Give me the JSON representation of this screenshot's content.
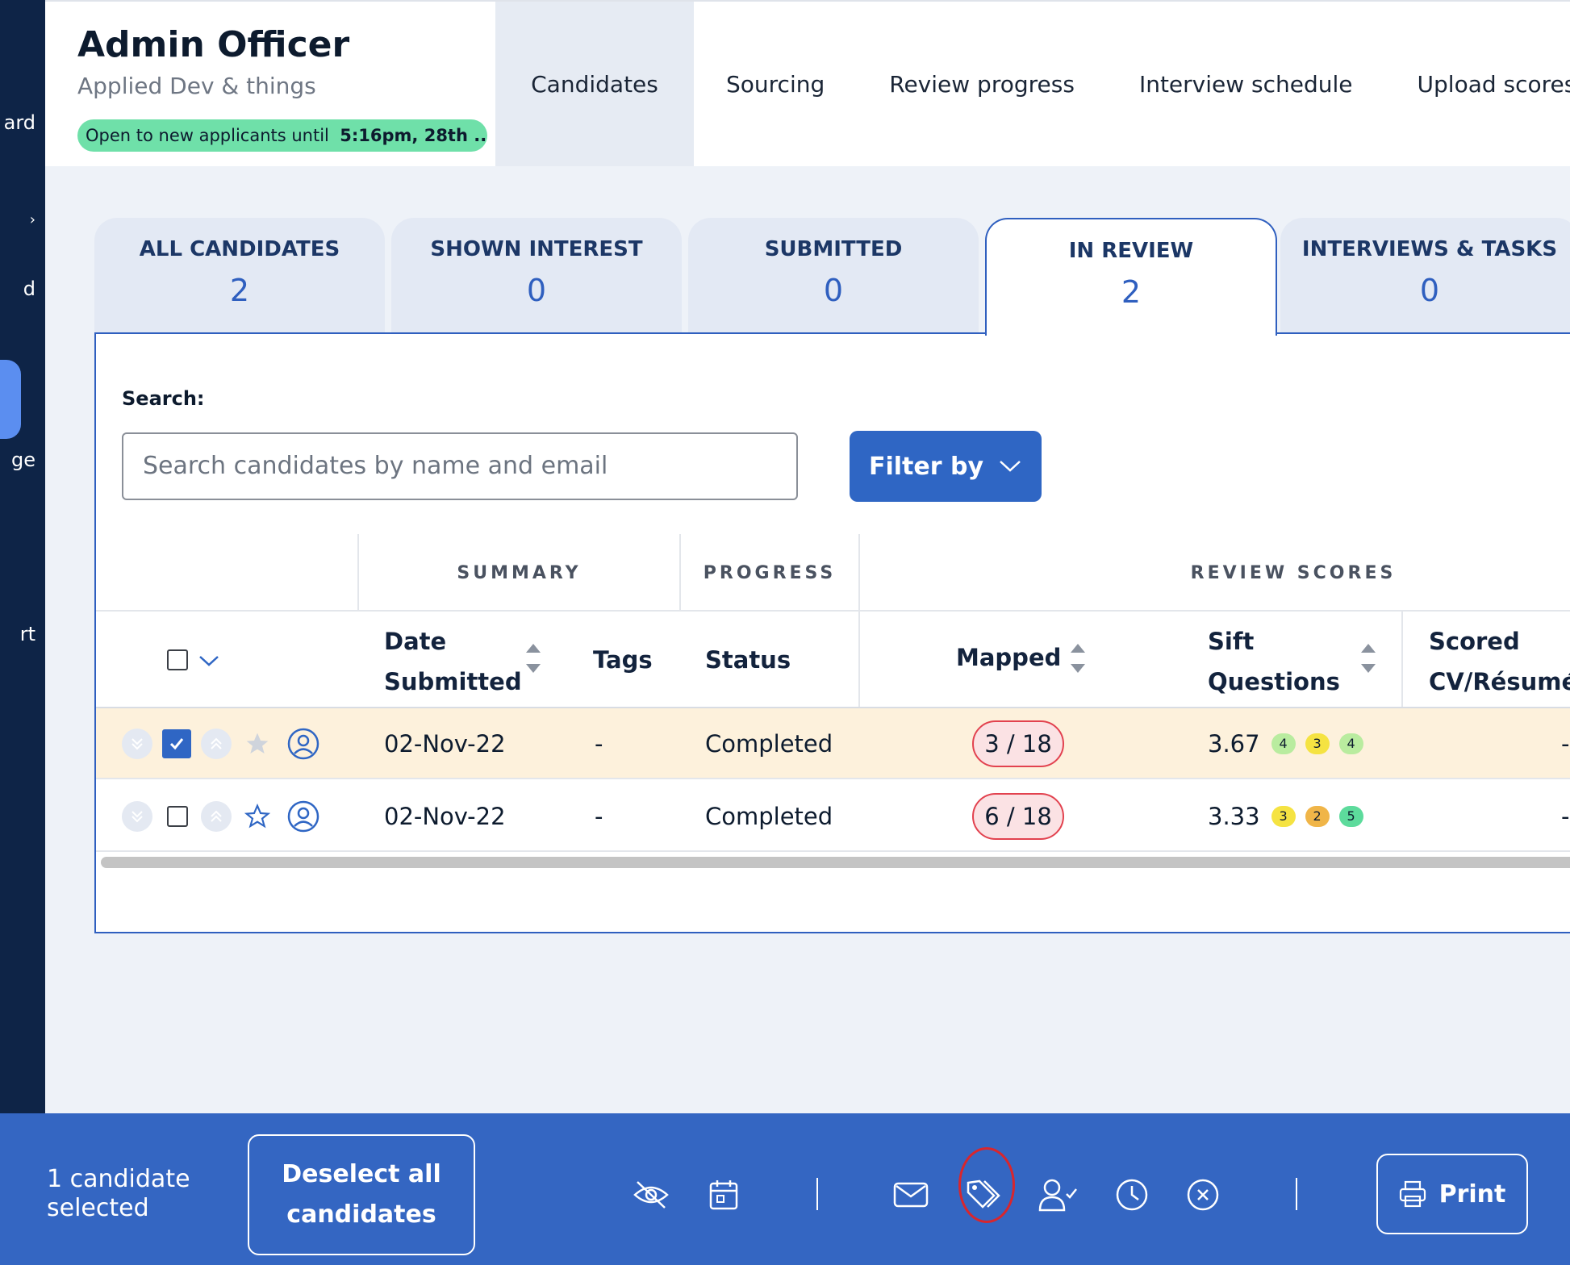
{
  "sidebar": {
    "items": [
      "ard",
      "",
      "d",
      "ge",
      "rt"
    ]
  },
  "job": {
    "title": "Admin Officer",
    "subtitle": "Applied Dev & things",
    "open_prefix": "Open to new applicants until",
    "open_until": "5:16pm, 28th ..."
  },
  "nav": {
    "items": [
      "Candidates",
      "Sourcing",
      "Review progress",
      "Interview schedule",
      "Upload scores"
    ],
    "active": "Candidates"
  },
  "stage_tabs": [
    {
      "label": "ALL CANDIDATES",
      "count": "2"
    },
    {
      "label": "SHOWN INTEREST",
      "count": "0"
    },
    {
      "label": "SUBMITTED",
      "count": "0"
    },
    {
      "label": "IN REVIEW",
      "count": "2"
    },
    {
      "label": "INTERVIEWS & TASKS",
      "count": "0"
    }
  ],
  "active_stage": "IN REVIEW",
  "search": {
    "label": "Search:",
    "placeholder": "Search candidates by name and email"
  },
  "filter": {
    "label": "Filter by"
  },
  "table": {
    "groups": {
      "summary": "SUMMARY",
      "progress": "PROGRESS",
      "review": "REVIEW SCORES"
    },
    "columns": {
      "date_1": "Date",
      "date_2": "Submitted",
      "tags": "Tags",
      "status": "Status",
      "mapped": "Mapped",
      "sift_1": "Sift",
      "sift_2": "Questions",
      "scored_1": "Scored",
      "scored_2": "CV/Résumé"
    },
    "rows": [
      {
        "selected": true,
        "starred": true,
        "date": "02-Nov-22",
        "tags": "-",
        "status": "Completed",
        "mapped": "3 / 18",
        "sift": "3.67",
        "badges": [
          "4",
          "3",
          "4"
        ],
        "scored": "-"
      },
      {
        "selected": false,
        "starred": false,
        "date": "02-Nov-22",
        "tags": "-",
        "status": "Completed",
        "mapped": "6 / 18",
        "sift": "3.33",
        "badges": [
          "3",
          "2",
          "5"
        ],
        "scored": "-"
      }
    ]
  },
  "action_bar": {
    "count_1": "1 candidate",
    "count_2": "selected",
    "deselect_1": "Deselect all",
    "deselect_2": "candidates",
    "print": "Print"
  },
  "colors": {
    "primary": "#3466c2",
    "sidebar": "#0e2447",
    "open_pill": "#6fe0a9",
    "selected_row": "#fdf1dc",
    "mapped_pill": "#e2424f"
  }
}
